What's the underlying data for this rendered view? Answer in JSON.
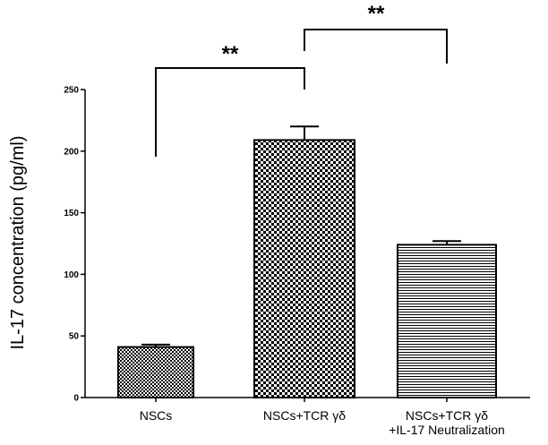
{
  "chart_data": {
    "type": "bar",
    "categories": [
      [
        "NSCs"
      ],
      [
        "NSCs+TCR γδ"
      ],
      [
        "NSCs+TCR γδ",
        "+IL-17 Neutralization"
      ]
    ],
    "values": [
      41,
      209,
      124
    ],
    "errors": [
      2,
      11,
      3
    ],
    "patterns": [
      "fine-checker",
      "coarse-checker",
      "horizontal-lines"
    ],
    "ylabel": "IL-17 concentration (pg/ml)",
    "xlabel": "",
    "title": "",
    "ylim": [
      0,
      250
    ],
    "yticks": [
      0,
      50,
      100,
      150,
      200,
      250
    ],
    "grid": false,
    "significance": [
      {
        "from": 0,
        "to": 1,
        "label": "**"
      },
      {
        "from": 1,
        "to": 2,
        "label": "**"
      }
    ]
  }
}
